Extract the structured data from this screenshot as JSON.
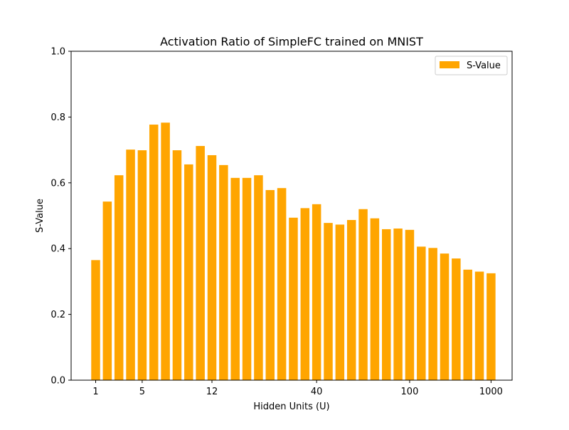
{
  "chart_data": {
    "type": "bar",
    "title": "Activation Ratio of SimpleFC trained on MNIST",
    "xlabel": "Hidden Units (U)",
    "ylabel": "S-Value",
    "ylim": [
      0,
      1.0
    ],
    "yticks": [
      0.0,
      0.2,
      0.4,
      0.6,
      0.8,
      1.0
    ],
    "ytick_labels": [
      "0.0",
      "0.2",
      "0.4",
      "0.6",
      "0.8",
      "1.0"
    ],
    "xticks": [
      {
        "label": "1",
        "bar_index": 0
      },
      {
        "label": "5",
        "bar_index": 4
      },
      {
        "label": "12",
        "bar_index": 10
      },
      {
        "label": "40",
        "bar_index": 19
      },
      {
        "label": "100",
        "bar_index": 27
      },
      {
        "label": "1000",
        "bar_index": 34
      }
    ],
    "grid": false,
    "legend": {
      "position": "top-right",
      "entries": [
        "S-Value"
      ]
    },
    "bar_color": "#ffa500",
    "series": [
      {
        "name": "S-Value",
        "values": [
          0.365,
          0.543,
          0.623,
          0.701,
          0.699,
          0.777,
          0.783,
          0.699,
          0.656,
          0.712,
          0.684,
          0.654,
          0.615,
          0.615,
          0.623,
          0.578,
          0.584,
          0.494,
          0.523,
          0.535,
          0.478,
          0.473,
          0.487,
          0.52,
          0.492,
          0.459,
          0.461,
          0.457,
          0.406,
          0.402,
          0.385,
          0.37,
          0.336,
          0.33,
          0.325
        ]
      }
    ]
  }
}
